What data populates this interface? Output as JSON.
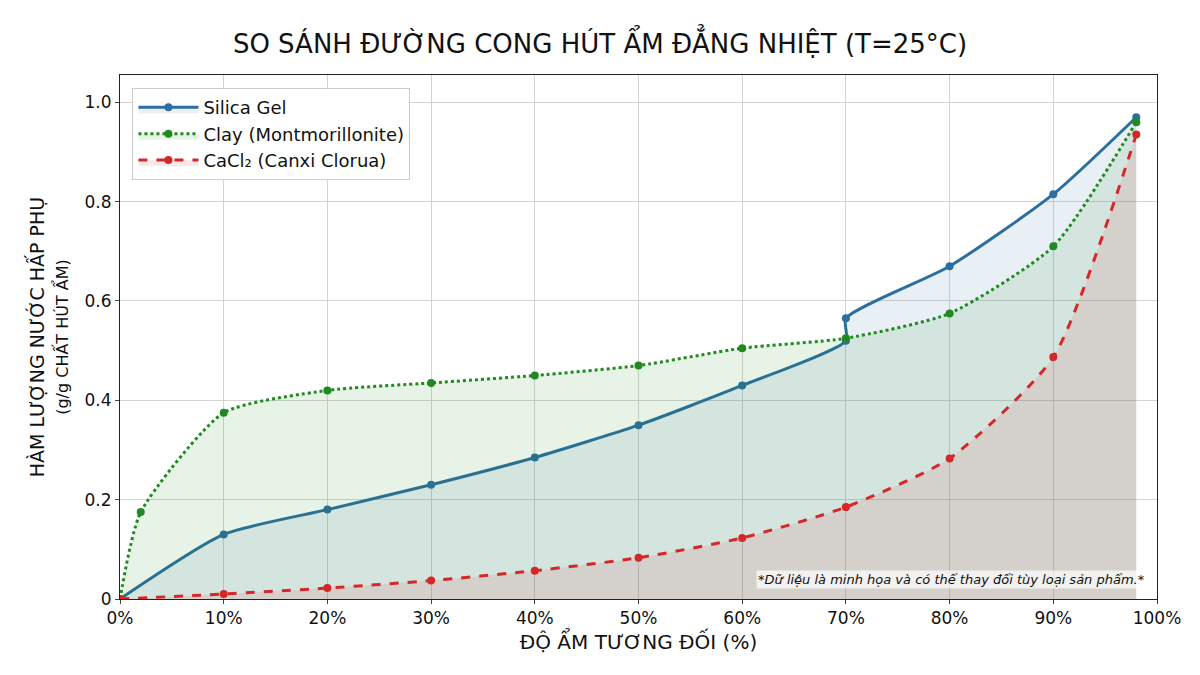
{
  "chart_data": {
    "type": "line",
    "title": "SO SÁNH ĐƯỜNG CONG HÚT ẨM ĐẲNG NHIỆT (T=25°C)",
    "x_label": "ĐỘ ẨM TƯƠNG ĐỐI (%)",
    "y_label": "HÀM LƯỢNG NƯỚC HẤP PHỤ",
    "y_sublabel": "(g/g CHẤT HÚT ẨM)",
    "annotation": "*Dữ liệu là minh họa và có thể thay đổi tùy loại sản phẩm.*",
    "xlim": [
      0,
      100
    ],
    "ylim": [
      0,
      1.055
    ],
    "xticks": [
      {
        "value": 0,
        "label": "0%"
      },
      {
        "value": 10,
        "label": "10%"
      },
      {
        "value": 20,
        "label": "20%"
      },
      {
        "value": 30,
        "label": "30%"
      },
      {
        "value": 40,
        "label": "40%"
      },
      {
        "value": 50,
        "label": "50%"
      },
      {
        "value": 60,
        "label": "60%"
      },
      {
        "value": 70,
        "label": "70%"
      },
      {
        "value": 80,
        "label": "80%"
      },
      {
        "value": 90,
        "label": "90%"
      },
      {
        "value": 100,
        "label": "100%"
      }
    ],
    "yticks": [
      0,
      0.2,
      0.4,
      0.6,
      0.8,
      {
        "value": 1,
        "label": "1.0"
      }
    ],
    "grid": true,
    "legend": "top left",
    "series": [
      {
        "name": "Silica Gel",
        "color": "#2c6e9e",
        "line_style": "solid",
        "marker": "circle",
        "x": [
          0,
          10,
          20,
          30,
          40,
          50,
          60,
          70,
          70,
          80,
          90,
          98
        ],
        "values": [
          0,
          0.13,
          0.18,
          0.23,
          0.285,
          0.35,
          0.43,
          0.52,
          0.565,
          0.67,
          0.815,
          0.97
        ]
      },
      {
        "name": "Clay (Montmorillonite)",
        "color": "#1f8a1f",
        "line_style": "dot",
        "marker": "circle",
        "x": [
          0,
          2,
          10,
          20,
          30,
          40,
          50,
          60,
          70,
          80,
          90,
          98
        ],
        "values": [
          0,
          0.175,
          0.375,
          0.42,
          0.435,
          0.45,
          0.47,
          0.505,
          0.525,
          0.575,
          0.71,
          0.96
        ]
      },
      {
        "name": "CaCl₂ (Canxi Clorua)",
        "color": "#d62728",
        "line_style": "dash",
        "marker": "circle",
        "x": [
          0,
          10,
          20,
          30,
          40,
          50,
          60,
          70,
          80,
          90,
          98
        ],
        "values": [
          0,
          0.01,
          0.022,
          0.037,
          0.057,
          0.083,
          0.123,
          0.185,
          0.283,
          0.487,
          0.935
        ]
      }
    ]
  }
}
